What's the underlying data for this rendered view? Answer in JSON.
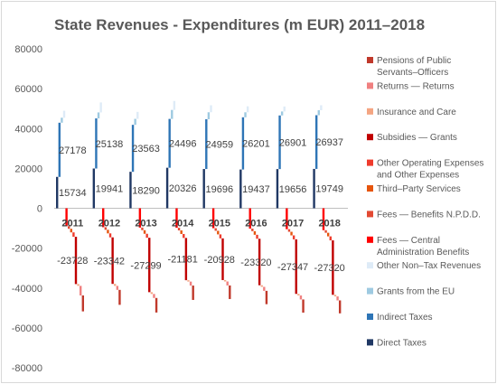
{
  "chart_data": {
    "type": "bar",
    "title": "State Revenues - Expenditures (m EUR) 2011–2018",
    "categories": [
      "2011",
      "2012",
      "2013",
      "2014",
      "2015",
      "2016",
      "2017",
      "2018"
    ],
    "ylim": [
      -80000,
      80000
    ],
    "yticks": [
      80000,
      60000,
      40000,
      20000,
      0,
      -20000,
      -40000,
      -60000,
      -80000
    ],
    "grid": false,
    "legend_position": "right",
    "series": [
      {
        "name": "Pensions of Public Servants–Officers",
        "color": "#c0392b",
        "values": [
          -8000,
          -7500,
          -7300,
          -7200,
          -6800,
          -6700,
          -6600,
          -6500
        ]
      },
      {
        "name": "Returns — Returns",
        "color": "#f08080",
        "values": [
          -4800,
          -2000,
          -2000,
          -2000,
          -2000,
          -2000,
          -2000,
          -2000
        ]
      },
      {
        "name": "Insurance and Care",
        "color": "#f4a582",
        "values": [
          -900,
          -1000,
          -900,
          -700,
          -700,
          -800,
          -800,
          -800
        ]
      },
      {
        "name": "Subsidies — Grants",
        "color": "#c00000",
        "values": [
          -23728,
          -23342,
          -27299,
          -21181,
          -20928,
          -23320,
          -27347,
          -27320
        ]
      },
      {
        "name": "Other Operating Expenses and Other Expenses",
        "color": "#ef3b2c",
        "values": [
          -2200,
          -2000,
          -2000,
          -2000,
          -2000,
          -2000,
          -2000,
          -2000
        ]
      },
      {
        "name": "Third–Party Services",
        "color": "#e6550d",
        "values": [
          -1800,
          -1800,
          -1800,
          -1800,
          -1800,
          -1800,
          -1800,
          -1800
        ]
      },
      {
        "name": "Fees — Benefits N.P.D.D.",
        "color": "#e34a33",
        "values": [
          -1300,
          -1300,
          -1300,
          -1300,
          -1300,
          -1300,
          -1300,
          -1300
        ]
      },
      {
        "name": "Fees — Central Administration Benefits",
        "color": "#ff0000",
        "values": [
          -9000,
          -9500,
          -9700,
          -9800,
          -10000,
          -10200,
          -10500,
          -11000
        ]
      },
      {
        "name": "Other Non–Tax Revenues",
        "color": "#deebf7",
        "values": [
          3500,
          5000,
          3500,
          4500,
          3500,
          3000,
          2500,
          2500
        ]
      },
      {
        "name": "Grants from the EU",
        "color": "#9ecae1",
        "values": [
          2500,
          3000,
          3000,
          4500,
          3500,
          2500,
          2000,
          2500
        ]
      },
      {
        "name": "Indirect Taxes",
        "color": "#2e75b6",
        "values": [
          27178,
          25138,
          23563,
          24496,
          24959,
          26201,
          26901,
          26937
        ]
      },
      {
        "name": "Direct Taxes",
        "color": "#203864",
        "values": [
          15734,
          19941,
          18290,
          20326,
          19696,
          19437,
          19656,
          19749
        ]
      }
    ],
    "data_labels": {
      "Direct Taxes": [
        "15734",
        "19941",
        "18290",
        "20326",
        "19696",
        "19437",
        "19656",
        "19749"
      ],
      "Indirect Taxes": [
        "27178",
        "25138",
        "23563",
        "24496",
        "24959",
        "26201",
        "26901",
        "26937"
      ],
      "Subsidies — Grants": [
        "-23728",
        "-23342",
        "-27299",
        "-21181",
        "-20928",
        "-23320",
        "-27347",
        "-27320"
      ]
    }
  }
}
